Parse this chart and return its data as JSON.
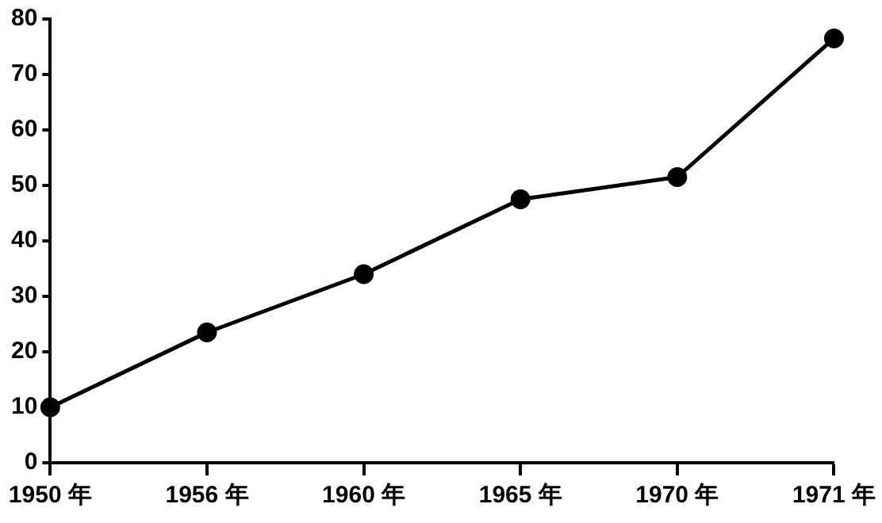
{
  "chart_data": {
    "type": "line",
    "categories": [
      "1950 年",
      "1956 年",
      "1960 年",
      "1965 年",
      "1970 年",
      "1971 年"
    ],
    "values": [
      10,
      23.5,
      34,
      47.5,
      51.5,
      76.5
    ],
    "color": "#000000",
    "ylim": [
      0,
      80
    ],
    "yticks": [
      0,
      10,
      20,
      30,
      40,
      50,
      60,
      70,
      80
    ],
    "grid": false,
    "legend": false,
    "marker": "circle",
    "line_style": "solid"
  }
}
